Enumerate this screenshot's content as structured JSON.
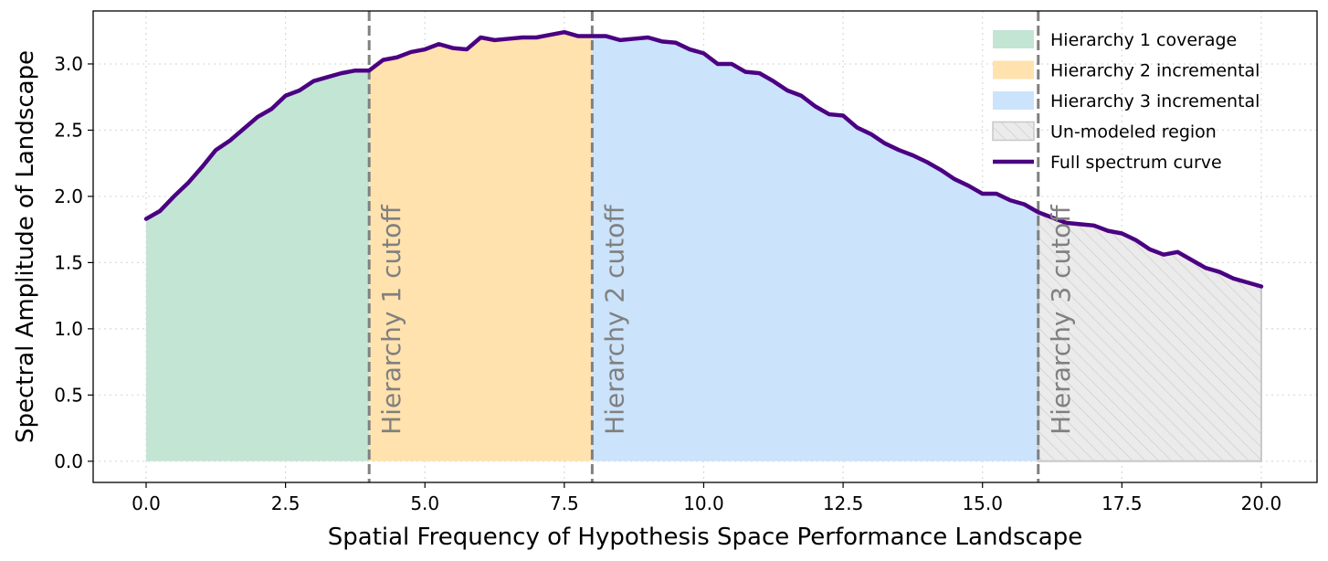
{
  "chart_data": {
    "type": "area",
    "xlabel": "Spatial Frequency of Hypothesis Space Performance Landscape",
    "ylabel": "Spectral Amplitude of Landscape",
    "xlim": [
      -0.95,
      21.0
    ],
    "ylim": [
      -0.16,
      3.4
    ],
    "xticks": [
      0.0,
      2.5,
      5.0,
      7.5,
      10.0,
      12.5,
      15.0,
      17.5,
      20.0
    ],
    "xtick_labels": [
      "0.0",
      "2.5",
      "5.0",
      "7.5",
      "10.0",
      "12.5",
      "15.0",
      "17.5",
      "20.0"
    ],
    "yticks": [
      0.0,
      0.5,
      1.0,
      1.5,
      2.0,
      2.5,
      3.0
    ],
    "ytick_labels": [
      "0.0",
      "0.5",
      "1.0",
      "1.5",
      "2.0",
      "2.5",
      "3.0"
    ],
    "grid": true,
    "legend_position": "top-right",
    "colors": {
      "h1": "#c3e5d4",
      "h2": "#ffe2ad",
      "h3": "#cbe3fb",
      "unmodeled": "#ebebeb",
      "hatch": "#c8c8c8",
      "curve": "#4b0082",
      "cutoff": "#808080"
    },
    "regions": [
      {
        "name": "Hierarchy 1 coverage",
        "key": "h1",
        "x_range": [
          0,
          4
        ]
      },
      {
        "name": "Hierarchy 2 incremental",
        "key": "h2",
        "x_range": [
          4,
          8
        ]
      },
      {
        "name": "Hierarchy 3 incremental",
        "key": "h3",
        "x_range": [
          8,
          16
        ]
      },
      {
        "name": "Un-modeled region",
        "key": "unmodeled",
        "x_range": [
          16,
          20
        ]
      }
    ],
    "cutoffs": [
      {
        "x": 4,
        "label": "Hierarchy 1 cutoff"
      },
      {
        "x": 8,
        "label": "Hierarchy 2 cutoff"
      },
      {
        "x": 16,
        "label": "Hierarchy 3 cutoff"
      }
    ],
    "series": [
      {
        "name": "Full spectrum curve",
        "x": [
          0.0,
          0.25,
          0.5,
          0.75,
          1.0,
          1.25,
          1.5,
          1.75,
          2.0,
          2.25,
          2.5,
          2.75,
          3.0,
          3.25,
          3.5,
          3.75,
          4.0,
          4.25,
          4.5,
          4.75,
          5.0,
          5.25,
          5.5,
          5.75,
          6.0,
          6.25,
          6.5,
          6.75,
          7.0,
          7.25,
          7.5,
          7.75,
          8.0,
          8.25,
          8.5,
          8.75,
          9.0,
          9.25,
          9.5,
          9.75,
          10.0,
          10.25,
          10.5,
          10.75,
          11.0,
          11.25,
          11.5,
          11.75,
          12.0,
          12.25,
          12.5,
          12.75,
          13.0,
          13.25,
          13.5,
          13.75,
          14.0,
          14.25,
          14.5,
          14.75,
          15.0,
          15.25,
          15.5,
          15.75,
          16.0,
          16.25,
          16.5,
          16.75,
          17.0,
          17.25,
          17.5,
          17.75,
          18.0,
          18.25,
          18.5,
          18.75,
          19.0,
          19.25,
          19.5,
          19.75,
          20.0
        ],
        "values": [
          1.83,
          1.89,
          2.0,
          2.1,
          2.22,
          2.35,
          2.42,
          2.51,
          2.6,
          2.66,
          2.76,
          2.8,
          2.87,
          2.9,
          2.93,
          2.95,
          2.95,
          3.03,
          3.05,
          3.09,
          3.11,
          3.15,
          3.12,
          3.11,
          3.2,
          3.18,
          3.19,
          3.2,
          3.2,
          3.22,
          3.24,
          3.21,
          3.21,
          3.21,
          3.18,
          3.19,
          3.2,
          3.17,
          3.16,
          3.11,
          3.08,
          3.0,
          3.0,
          2.94,
          2.93,
          2.87,
          2.8,
          2.76,
          2.68,
          2.62,
          2.61,
          2.52,
          2.47,
          2.4,
          2.35,
          2.31,
          2.26,
          2.2,
          2.13,
          2.08,
          2.02,
          2.02,
          1.97,
          1.94,
          1.88,
          1.84,
          1.8,
          1.79,
          1.78,
          1.74,
          1.72,
          1.67,
          1.6,
          1.56,
          1.58,
          1.52,
          1.46,
          1.43,
          1.38,
          1.35,
          1.32
        ]
      }
    ]
  }
}
